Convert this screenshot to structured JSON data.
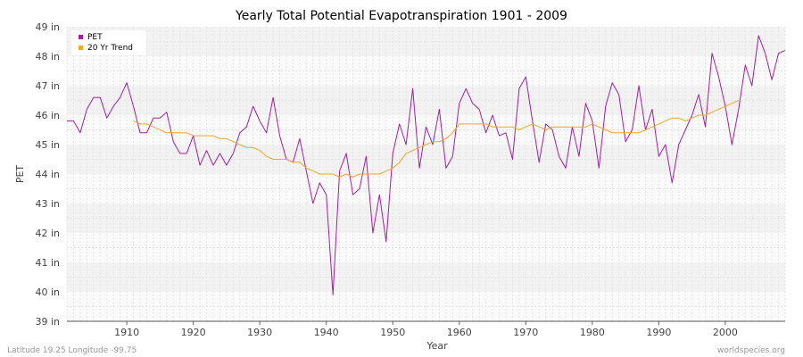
{
  "chart_data": {
    "type": "line",
    "title": "Yearly Total Potential Evapotranspiration 1901 - 2009",
    "xlabel": "Year",
    "ylabel": "PET",
    "xlim": [
      1901,
      2009
    ],
    "ylim": [
      39,
      49
    ],
    "x_ticks": [
      1910,
      1920,
      1930,
      1940,
      1950,
      1960,
      1970,
      1980,
      1990,
      2000
    ],
    "y_ticks": [
      39,
      40,
      41,
      42,
      43,
      44,
      45,
      46,
      47,
      48,
      49
    ],
    "y_tick_labels": [
      "39 in",
      "40 in",
      "41 in",
      "42 in",
      "43 in",
      "44 in",
      "45 in",
      "46 in",
      "47 in",
      "48 in",
      "49 in"
    ],
    "legend_position": "top-left",
    "series": [
      {
        "name": "PET",
        "color": "#a020a0",
        "x_start": 1901,
        "values": [
          45.8,
          45.8,
          45.4,
          46.2,
          46.6,
          46.6,
          45.9,
          46.3,
          46.6,
          47.1,
          46.3,
          45.4,
          45.4,
          45.9,
          45.9,
          46.1,
          45.1,
          44.7,
          44.7,
          45.3,
          44.3,
          44.8,
          44.3,
          44.7,
          44.3,
          44.7,
          45.4,
          45.6,
          46.3,
          45.8,
          45.4,
          46.6,
          45.3,
          44.5,
          44.4,
          45.2,
          44.1,
          43.0,
          43.7,
          43.3,
          39.9,
          44.1,
          44.7,
          43.3,
          43.5,
          44.6,
          42.0,
          43.3,
          41.7,
          44.7,
          45.7,
          45.0,
          46.9,
          44.2,
          45.6,
          45.0,
          46.2,
          44.2,
          44.6,
          46.4,
          46.9,
          46.4,
          46.2,
          45.4,
          46.0,
          45.3,
          45.4,
          44.5,
          46.9,
          47.3,
          45.8,
          44.4,
          45.7,
          45.5,
          44.6,
          44.2,
          45.6,
          44.6,
          46.4,
          45.8,
          44.2,
          46.3,
          47.1,
          46.7,
          45.1,
          45.5,
          47.0,
          45.5,
          46.2,
          44.6,
          45.0,
          43.7,
          45.0,
          45.5,
          46.0,
          46.7,
          45.6,
          48.1,
          47.3,
          46.3,
          45.0,
          46.2,
          47.7,
          47.0,
          48.7,
          48.1,
          47.2,
          48.1,
          48.2
        ]
      },
      {
        "name": "20 Yr Trend",
        "color": "#f5a623",
        "x_start": 1911,
        "values": [
          45.8,
          45.7,
          45.7,
          45.6,
          45.5,
          45.4,
          45.4,
          45.4,
          45.4,
          45.3,
          45.3,
          45.3,
          45.3,
          45.2,
          45.2,
          45.1,
          45.0,
          44.9,
          44.9,
          44.8,
          44.6,
          44.5,
          44.5,
          44.5,
          44.4,
          44.4,
          44.2,
          44.1,
          44.0,
          44.0,
          44.0,
          43.9,
          44.0,
          43.9,
          44.0,
          44.0,
          44.0,
          44.0,
          44.1,
          44.2,
          44.4,
          44.7,
          44.8,
          44.9,
          45.0,
          45.1,
          45.1,
          45.2,
          45.4,
          45.7,
          45.7,
          45.7,
          45.7,
          45.7,
          45.6,
          45.6,
          45.6,
          45.6,
          45.5,
          45.6,
          45.7,
          45.6,
          45.5,
          45.6,
          45.6,
          45.6,
          45.6,
          45.6,
          45.6,
          45.7,
          45.6,
          45.5,
          45.4,
          45.4,
          45.4,
          45.4,
          45.4,
          45.5,
          45.6,
          45.7,
          45.8,
          45.9,
          45.9,
          45.8,
          45.9,
          46.0,
          46.0,
          46.1,
          46.2,
          46.3,
          46.4,
          46.5
        ]
      }
    ]
  },
  "footer": {
    "location": "Latitude 19.25 Longitude -99.75",
    "credit": "worldspecies.org"
  }
}
